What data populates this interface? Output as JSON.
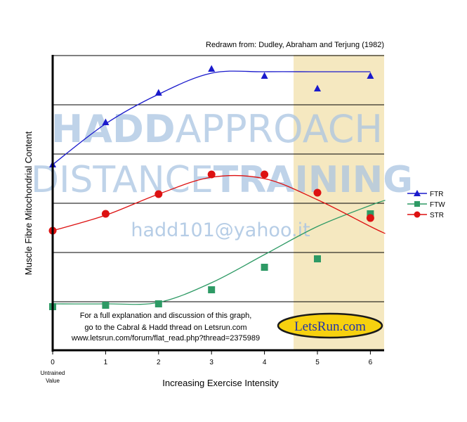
{
  "chart_data": {
    "type": "line",
    "source_note": "Redrawn from: Dudley, Abraham and Terjung (1982)",
    "xlabel": "Increasing Exercise Intensity",
    "ylabel": "Muscle Fibre Mitochondrial Content",
    "x_ticks": [
      "0",
      "1",
      "2",
      "3",
      "4",
      "5",
      "6"
    ],
    "x0_sublabel": [
      "Untrained",
      "Value"
    ],
    "xlim": [
      0,
      6.28
    ],
    "ylim": [
      0,
      100
    ],
    "grid": "horizontal",
    "legend_position": "right",
    "highlight_band": {
      "from": 4.55,
      "to": 6.28,
      "color": "#f5e8c0"
    },
    "series": [
      {
        "name": "FTR",
        "color": "#1a1acc",
        "marker": "triangle",
        "x": [
          0,
          1,
          2,
          3,
          4,
          5,
          6
        ],
        "y": [
          66,
          81,
          91.5,
          100,
          97.5,
          93,
          97.5
        ],
        "curve_y": [
          66,
          80.5,
          91,
          98.5,
          99,
          99,
          99
        ]
      },
      {
        "name": "FTW",
        "color": "#2e9a65",
        "marker": "square",
        "x": [
          0,
          1,
          2,
          3,
          4,
          5,
          6
        ],
        "y": [
          15.5,
          16,
          16.5,
          21.5,
          29.5,
          32.5,
          48.5
        ],
        "curve_y": [
          16.5,
          16.5,
          17,
          24,
          34,
          44,
          51.5
        ]
      },
      {
        "name": "STR",
        "color": "#dd1111",
        "marker": "circle",
        "x": [
          0,
          1,
          2,
          3,
          4,
          5,
          6
        ],
        "y": [
          42.5,
          48.5,
          55.5,
          62.5,
          62.5,
          56,
          47
        ],
        "curve_y": [
          42.5,
          48,
          55.5,
          61.5,
          61,
          53.5,
          44
        ]
      }
    ],
    "annotation_lines": [
      "For a full explanation and discussion of this graph,",
      "go to the Cabral & Hadd thread on Letsrun.com",
      "www.letsrun.com/forum/flat_read.php?thread=2375989"
    ],
    "badge": "LetsRun.com",
    "watermark": {
      "line1_bold": "HADD",
      "line1_light": "APPROACH",
      "line2_light": "DISTANCE",
      "line2_bold": "TRAINING",
      "email": "hadd101@yahoo.it"
    }
  }
}
